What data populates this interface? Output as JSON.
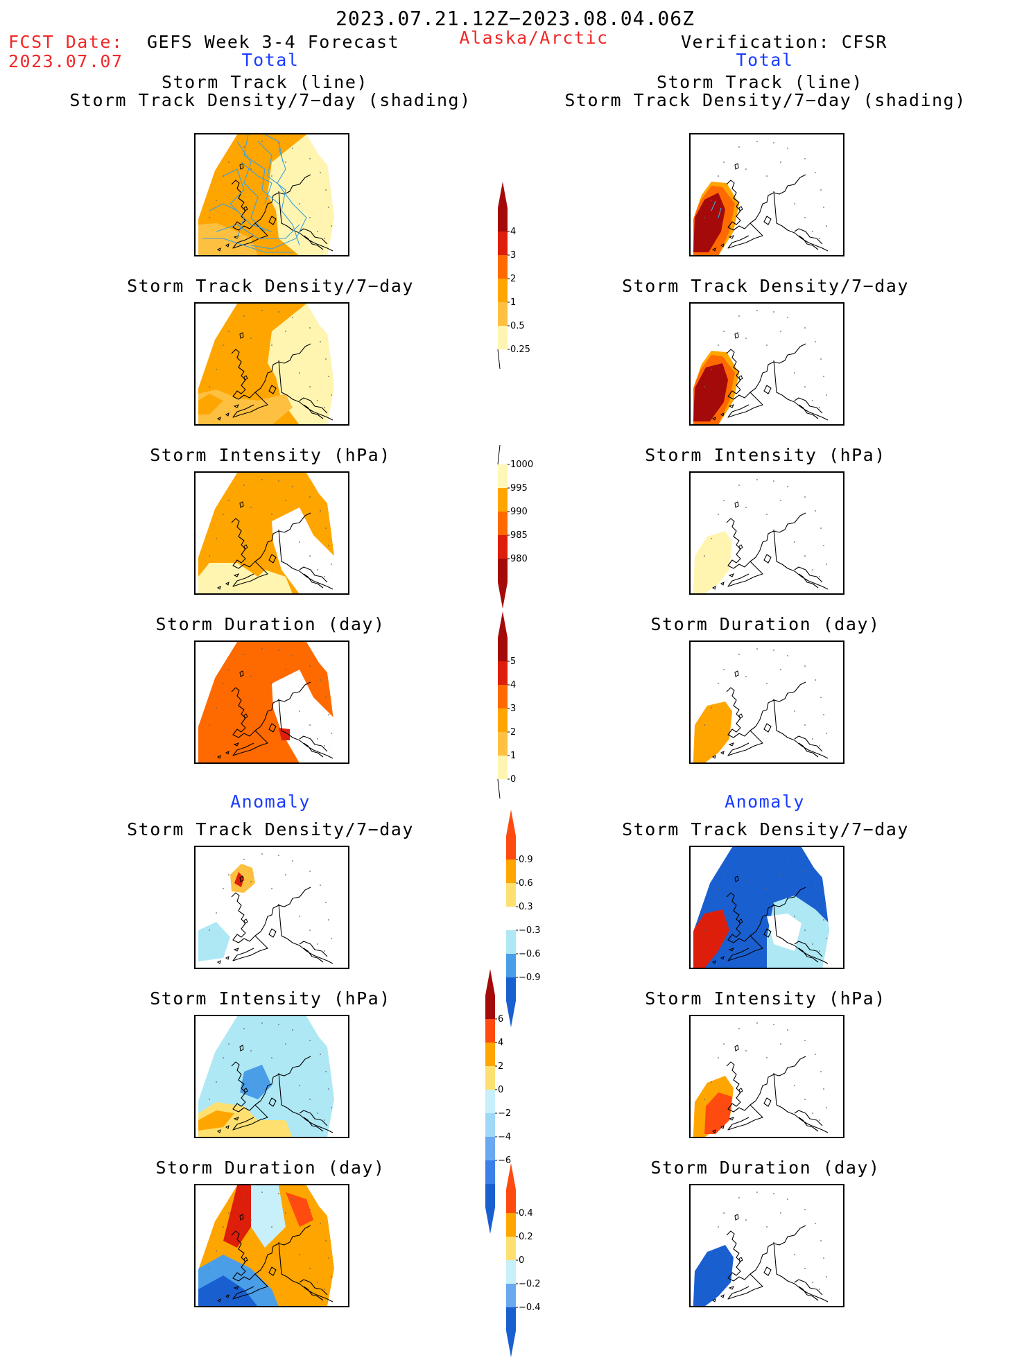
{
  "header": {
    "title": "2023.07.21.12Z−2023.08.04.06Z",
    "fcst_label": "FCST Date:",
    "fcst_date": "2023.07.07",
    "model": "GEFS Week 3-4 Forecast",
    "region": "Alaska/Arctic",
    "verification": "Verification: CFSR"
  },
  "columns": {
    "left_total": "Total",
    "right_total": "Total",
    "left_anomaly": "Anomaly",
    "right_anomaly": "Anomaly"
  },
  "titles": {
    "track_line": "Storm Track (line)",
    "track_shading": "Storm Track Density/7−day (shading)",
    "density": "Storm Track Density/7−day",
    "intensity": "Storm Intensity (hPa)",
    "duration": "Storm Duration (day)"
  },
  "colorbars": {
    "density_total": {
      "labels": [
        "4",
        "3",
        "2",
        "1",
        "0.5",
        "0.25"
      ],
      "colors": [
        "#a50a0a",
        "#dc1e0a",
        "#ff6a00",
        "#ffa500",
        "#fdc040",
        "#fff5b0"
      ]
    },
    "intensity_total": {
      "labels": [
        "1000",
        "995",
        "990",
        "985",
        "980"
      ],
      "colors": [
        "#fff7b8",
        "#ffa500",
        "#ff6a00",
        "#dc1e0a",
        "#a50a0a"
      ]
    },
    "duration_total": {
      "labels": [
        "5",
        "4",
        "3",
        "2",
        "1",
        "0"
      ],
      "colors": [
        "#a50a0a",
        "#dc1e0a",
        "#ff6a00",
        "#ffa500",
        "#fdc040",
        "#fff5b0"
      ]
    },
    "density_anom": {
      "labels": [
        "0.9",
        "0.6",
        "0.3",
        "−0.3",
        "−0.6",
        "−0.9"
      ],
      "colors": [
        "#ff4a10",
        "#ffa500",
        "#fde070",
        "#ffffff",
        "#aee8f5",
        "#4a9ee8",
        "#1a5fd0"
      ]
    },
    "intensity_anom": {
      "labels": [
        "6",
        "4",
        "2",
        "0",
        "−2",
        "−4",
        "−6"
      ],
      "colors": [
        "#a50a0a",
        "#ff4a10",
        "#ffa500",
        "#fde070",
        "#c8f0fa",
        "#a0d8f8",
        "#6aa8f0",
        "#3a80e8",
        "#1a5fd0"
      ]
    },
    "duration_anom": {
      "labels": [
        "0.4",
        "0.2",
        "0",
        "−0.2",
        "−0.4"
      ],
      "colors": [
        "#ff4a10",
        "#ffa500",
        "#fde070",
        "#c8f0fa",
        "#6aa8f0",
        "#1a5fd0"
      ]
    }
  },
  "map_colors": {
    "dark_red": "#a50a0a",
    "red": "#dc1e0a",
    "orange_red": "#ff6a00",
    "orange": "#ffa500",
    "light_orange": "#fdc040",
    "pale_yellow": "#fff5b0",
    "light_blue": "#aee8f5",
    "mid_blue": "#4a9ee8",
    "dark_blue": "#1a5fd0",
    "track_line": "#3aa0e0"
  }
}
